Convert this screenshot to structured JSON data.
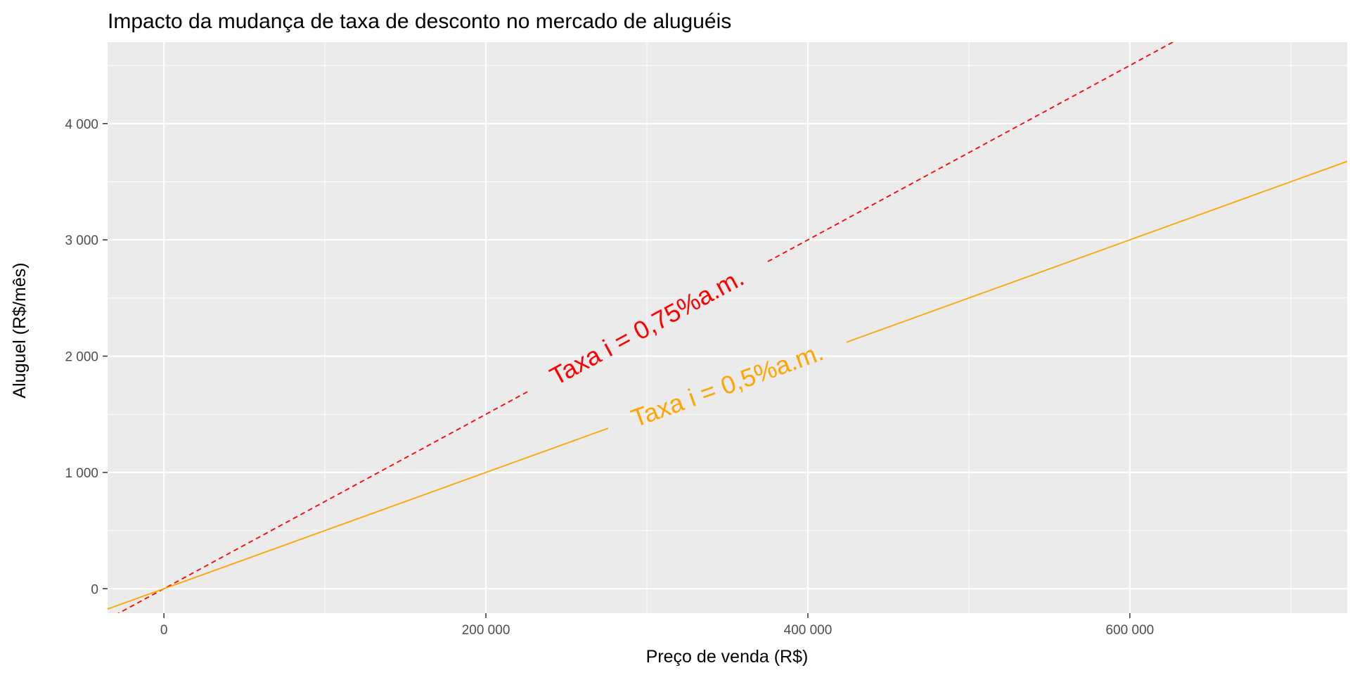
{
  "chart_data": {
    "type": "line",
    "title": "Impacto da mudança de taxa de desconto no mercado de aluguéis",
    "xlabel": "Preço de venda (R$)",
    "ylabel": "Aluguel (R$/mês)",
    "xlim": [
      -35000,
      735000
    ],
    "ylim": [
      -210000,
      4700
    ],
    "ylim_note": "",
    "x_ticks": [
      {
        "value": 0,
        "label": "0"
      },
      {
        "value": 200000,
        "label": "200 000"
      },
      {
        "value": 400000,
        "label": "400 000"
      },
      {
        "value": 600000,
        "label": "600 000"
      }
    ],
    "y_ticks": [
      {
        "value": 0,
        "label": "0"
      },
      {
        "value": 1000,
        "label": "1 000"
      },
      {
        "value": 2000,
        "label": "2 000"
      },
      {
        "value": 3000,
        "label": "3 000"
      },
      {
        "value": 4000,
        "label": "4 000"
      }
    ],
    "grid": true,
    "series": [
      {
        "label": "Taxa i = 0,75%a.m.",
        "rate": 0.0075,
        "color": "#ff0000",
        "linestyle": "dashed",
        "label_at": 300000
      },
      {
        "label": "Taxa i = 0,5%a.m.",
        "rate": 0.005,
        "color": "#ffa500",
        "linestyle": "solid",
        "label_at": 350000
      }
    ]
  },
  "colors": {
    "panel_background": "#ebebeb",
    "grid_major": "#ffffff",
    "tick_text": "#4d4d4d"
  }
}
